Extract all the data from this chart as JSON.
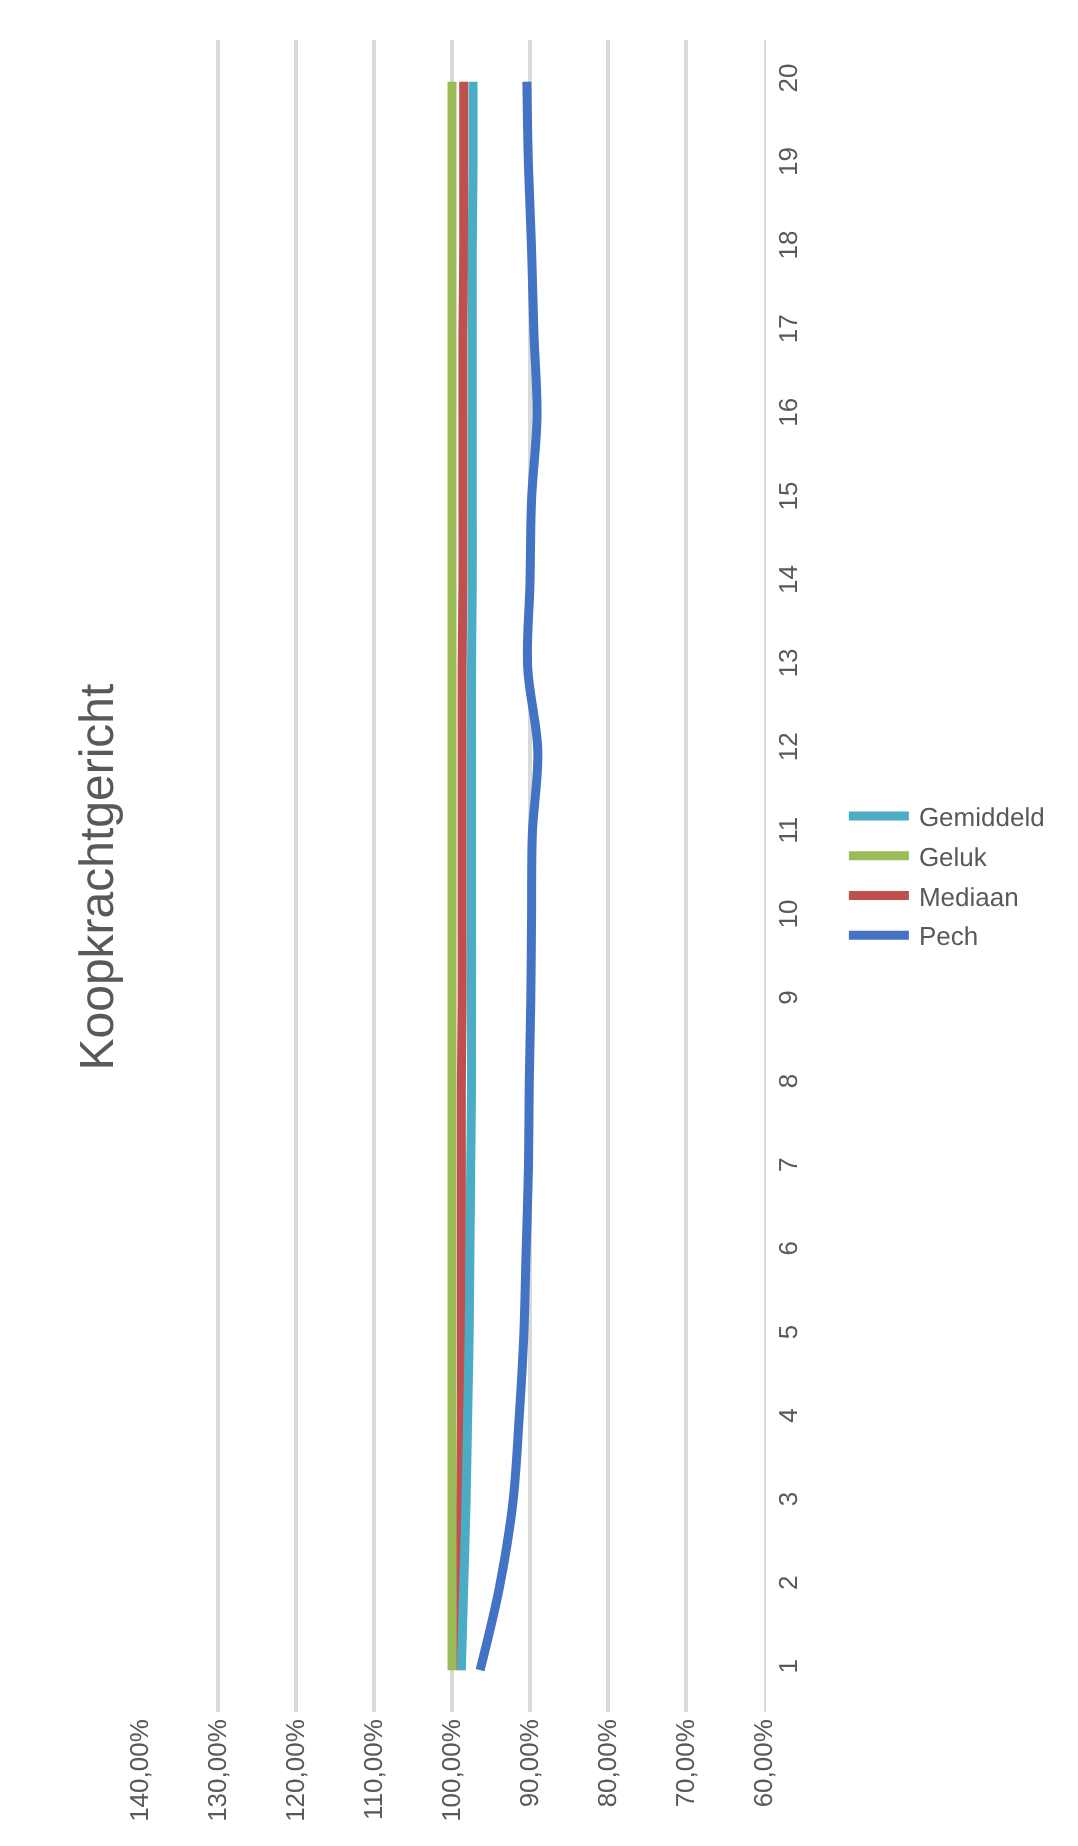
{
  "chart_data": {
    "type": "line",
    "title": "Koopkrachtgericht",
    "orientation": "horizontal",
    "categories": [
      "20",
      "19",
      "18",
      "17",
      "16",
      "15",
      "14",
      "13",
      "12",
      "11",
      "10",
      "9",
      "8",
      "7",
      "6",
      "5",
      "4",
      "3",
      "2",
      "1"
    ],
    "series": [
      {
        "name": "Pech",
        "color": "#4472c4",
        "values": [
          90.4,
          90.2,
          89.8,
          89.5,
          89.1,
          89.8,
          90.0,
          90.3,
          89.0,
          89.7,
          89.8,
          89.9,
          90.1,
          90.2,
          90.5,
          90.8,
          91.4,
          92.2,
          93.9,
          96.4
        ]
      },
      {
        "name": "Mediaan",
        "color": "#c0504d",
        "values": [
          98.5,
          98.5,
          98.5,
          98.6,
          98.6,
          98.6,
          98.6,
          98.7,
          98.7,
          98.7,
          98.7,
          98.7,
          98.8,
          98.8,
          98.8,
          98.8,
          98.8,
          98.9,
          98.9,
          98.9
        ]
      },
      {
        "name": "Geluk",
        "color": "#9bbb59",
        "values": [
          100.0,
          100.0,
          100.0,
          100.0,
          100.0,
          100.0,
          100.0,
          100.0,
          100.0,
          100.0,
          100.0,
          100.0,
          100.0,
          100.0,
          100.0,
          100.0,
          100.0,
          100.0,
          100.0,
          100.0
        ]
      },
      {
        "name": "Gemiddeld",
        "color": "#4bacc6",
        "values": [
          97.3,
          97.3,
          97.4,
          97.4,
          97.4,
          97.4,
          97.4,
          97.5,
          97.5,
          97.5,
          97.5,
          97.5,
          97.5,
          97.6,
          97.7,
          97.8,
          98.0,
          98.2,
          98.5,
          98.8
        ]
      }
    ],
    "xlim": [
      140,
      60
    ],
    "xticks": [
      {
        "value": 140,
        "label": "140,00%"
      },
      {
        "value": 130,
        "label": "130,00%"
      },
      {
        "value": 120,
        "label": "120,00%"
      },
      {
        "value": 110,
        "label": "110,00%"
      },
      {
        "value": 100,
        "label": "100,00%"
      },
      {
        "value": 90,
        "label": "90,00%"
      },
      {
        "value": 80,
        "label": "80,00%"
      },
      {
        "value": 70,
        "label": "70,00%"
      },
      {
        "value": 60,
        "label": "60,00%"
      }
    ],
    "grid": "x",
    "legend": "right",
    "marker": "none",
    "line_style": "solid"
  }
}
